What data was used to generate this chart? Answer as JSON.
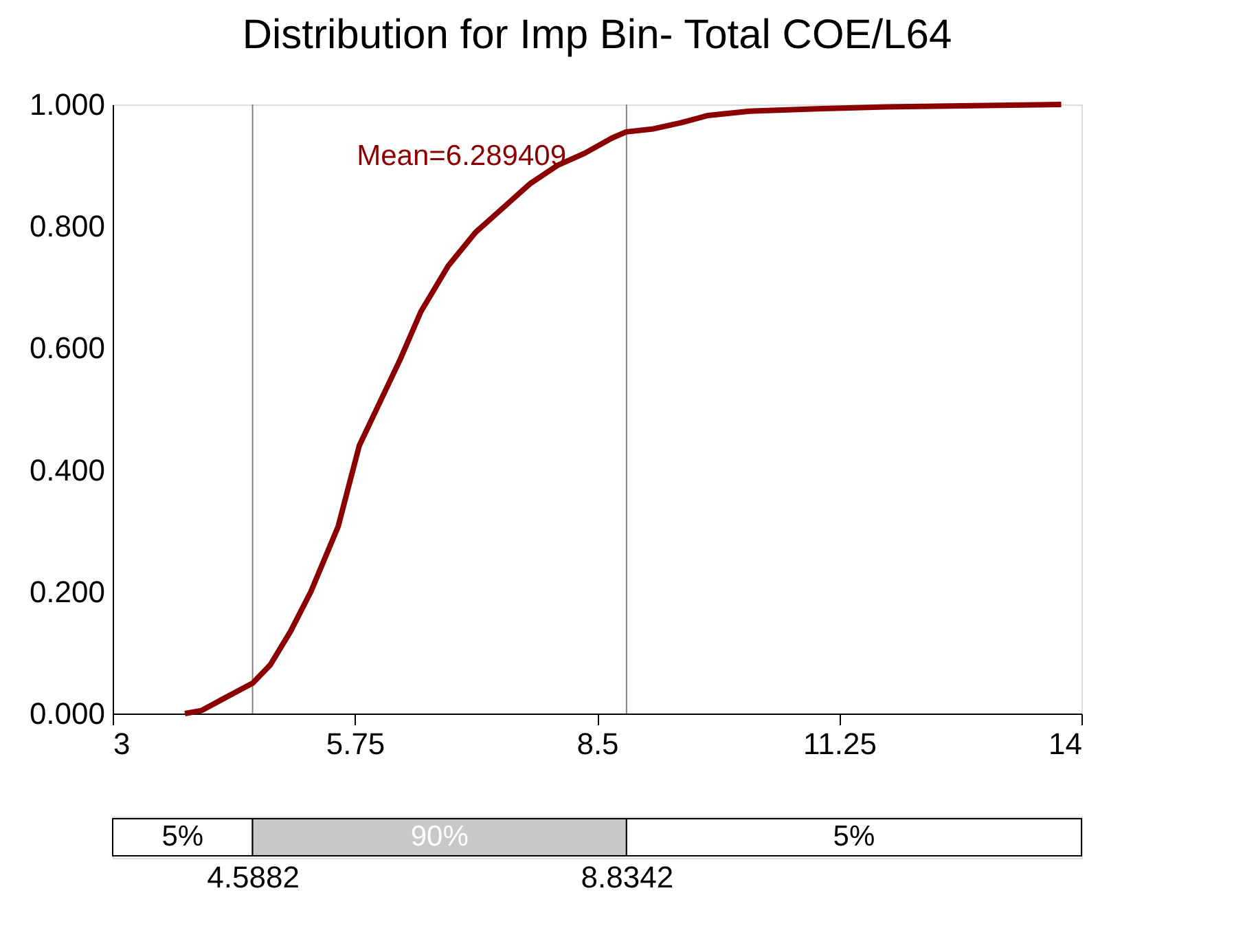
{
  "chart_data": [
    {
      "type": "line",
      "title": "Distribution for Imp Bin- Total COE/L64",
      "x": [
        3.82,
        4.01,
        4.24,
        4.59,
        4.79,
        5.02,
        5.25,
        5.56,
        5.8,
        6.03,
        6.26,
        6.5,
        6.81,
        7.12,
        7.43,
        7.74,
        8.05,
        8.36,
        8.67,
        8.83,
        9.14,
        9.45,
        9.76,
        10.23,
        11.0,
        11.78,
        13.77
      ],
      "series": [
        {
          "color": "#8b0000",
          "values": [
            0,
            0.005,
            0.023,
            0.05,
            0.08,
            0.135,
            0.2,
            0.307,
            0.44,
            0.51,
            0.58,
            0.66,
            0.735,
            0.79,
            0.83,
            0.87,
            0.9,
            0.92,
            0.945,
            0.955,
            0.96,
            0.97,
            0.982,
            0.989,
            0.993,
            0.996,
            1.0
          ]
        }
      ],
      "xlim": [
        3,
        14
      ],
      "xticks": [
        3,
        5.75,
        8.5,
        11.25,
        14
      ],
      "ylim": [
        0,
        1
      ],
      "yticks": [
        {
          "value": 0,
          "label": "0.000"
        },
        {
          "value": 0.2,
          "label": "0.200"
        },
        {
          "value": 0.4,
          "label": "0.400"
        },
        {
          "value": 0.6,
          "label": "0.600"
        },
        {
          "value": 0.8,
          "label": "0.800"
        },
        {
          "value": 1,
          "label": "1.000"
        }
      ],
      "ref_lines": [
        {
          "axis": "x",
          "value": 4.5882,
          "color": "#808080"
        },
        {
          "axis": "x",
          "value": 8.8342,
          "color": "#808080"
        }
      ],
      "annotations": [
        "Mean=6.289409"
      ],
      "grid": false,
      "legend": false,
      "marker": "none",
      "line_style": "solid"
    },
    {
      "type": "bar",
      "orientation": "horizontal",
      "categories": [
        null
      ],
      "series": [
        {
          "color": "#ffffff",
          "values": [
            1.5882
          ],
          "base": [
            3
          ]
        },
        {
          "color": "#c8c8c8",
          "values": [
            4.246
          ],
          "base": [
            4.5882
          ]
        },
        {
          "color": "#ffffff",
          "values": [
            5.1658
          ],
          "base": [
            8.8342
          ]
        }
      ],
      "annotations": [
        "5%",
        "90%",
        "5%"
      ],
      "xlim": [
        3,
        14
      ],
      "xticks": [
        4.5882,
        8.8342
      ],
      "tick_labels": "x",
      "grid": false
    }
  ]
}
